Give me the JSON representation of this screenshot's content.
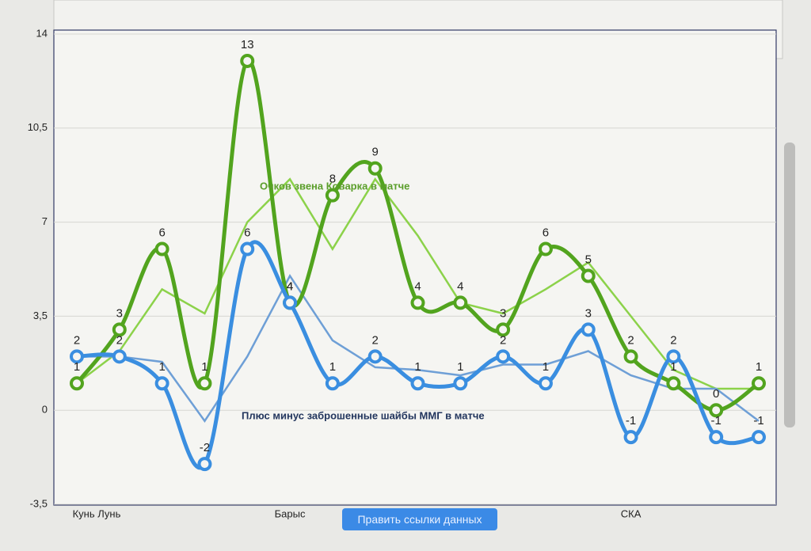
{
  "chart_data": {
    "type": "line",
    "categories": [
      "Кунь Лунь",
      null,
      null,
      null,
      null,
      "Барыс",
      null,
      null,
      null,
      null,
      null,
      null,
      null,
      "СКА",
      null,
      null,
      null
    ],
    "series": [
      {
        "color": "#52a41e",
        "values": [
          1,
          3,
          6,
          1,
          13,
          4,
          8,
          9,
          4,
          4,
          3,
          6,
          5,
          2,
          1,
          0,
          1
        ]
      },
      {
        "color": "#3a8ee0",
        "values": [
          2,
          2,
          1,
          -2,
          6,
          4,
          1,
          2,
          1,
          1,
          2,
          1,
          3,
          -1,
          2,
          -1,
          -1
        ]
      },
      {
        "color": "#8cd24a",
        "values": [
          1,
          2.2,
          4.5,
          3.6,
          7,
          8.6,
          6,
          8.6,
          6.5,
          4,
          3.6,
          4.5,
          5.5,
          3.5,
          1.5,
          0.8,
          0.8
        ]
      },
      {
        "color": "#6e9fd6",
        "values": [
          2,
          2,
          1.8,
          -0.4,
          2,
          5,
          2.6,
          1.6,
          1.5,
          1.3,
          1.7,
          1.7,
          2.2,
          1.3,
          0.8,
          0.8,
          -0.4
        ]
      }
    ],
    "annotations": [
      "Очков звена Коварка в матче",
      "Плюс минус заброшенные шайбы ММГ в матче"
    ],
    "button": "Править ссылки данных",
    "ylim": [
      -3.5,
      14
    ],
    "yticks": [
      {
        "value": -3.5,
        "label": "-3,5"
      },
      0,
      {
        "value": 3.5,
        "label": "3,5"
      },
      7,
      {
        "value": 10.5,
        "label": "10,5"
      },
      14
    ],
    "grid": true
  }
}
